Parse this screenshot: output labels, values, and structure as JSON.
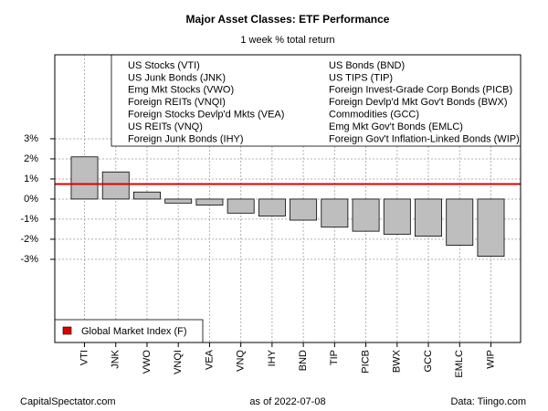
{
  "chart_data": {
    "type": "bar",
    "title": "Major Asset Classes: ETF Performance",
    "subtitle": "1 week % total return",
    "categories": [
      "VTI",
      "JNK",
      "VWO",
      "VNQI",
      "VEA",
      "VNQ",
      "IHY",
      "BND",
      "TIP",
      "PICB",
      "BWX",
      "GCC",
      "EMLC",
      "WIP"
    ],
    "values": [
      2.1,
      1.35,
      0.35,
      -0.2,
      -0.3,
      -0.7,
      -0.85,
      -1.05,
      -1.4,
      -1.6,
      -1.75,
      -1.85,
      -2.3,
      -2.85
    ],
    "color": "#bebebe",
    "ylim": [
      -7.14,
      7.18
    ],
    "yticks": [
      {
        "value": -3,
        "label": "-3%"
      },
      {
        "value": -2,
        "label": "-2%"
      },
      {
        "value": -1,
        "label": "-1%"
      },
      {
        "value": 0,
        "label": "0%"
      },
      {
        "value": 1,
        "label": "1%"
      },
      {
        "value": 2,
        "label": "2%"
      },
      {
        "value": 3,
        "label": "3%"
      }
    ],
    "grid": true,
    "reference_line": {
      "name": "Global Market Index (F)",
      "value": 0.75,
      "color": "#e00000"
    },
    "asset_legend": [
      [
        "US Stocks (VTI)",
        "US Junk Bonds (JNK)",
        "Emg Mkt Stocks (VWO)",
        "Foreign REITs (VNQI)",
        "Foreign Stocks Devlp'd Mkts (VEA)",
        "US REITs (VNQ)",
        "Foreign Junk Bonds (IHY)"
      ],
      [
        "US Bonds (BND)",
        "US TIPS (TIP)",
        "Foreign Invest-Grade Corp Bonds (PICB)",
        "Foreign Devlp'd Mkt Gov't Bonds (BWX)",
        "Commodities (GCC)",
        "Emg Mkt Gov't Bonds (EMLC)",
        "Foreign Gov't Inflation-Linked Bonds (WIP)"
      ]
    ],
    "footer_left": "CapitalSpectator.com",
    "footer_center": "as of  2022-07-08",
    "footer_right": "Data: Tiingo.com"
  }
}
